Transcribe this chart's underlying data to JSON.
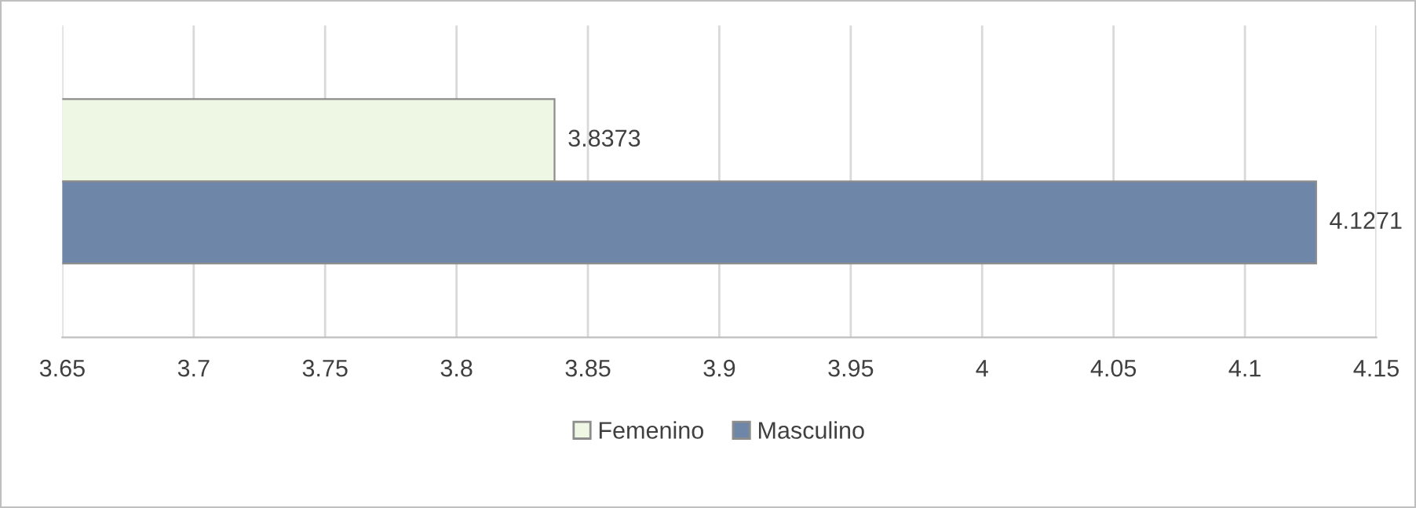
{
  "chart_data": {
    "type": "bar",
    "orientation": "horizontal",
    "categories": [
      null
    ],
    "series": [
      {
        "name": "Femenino",
        "color": "#eef7e4",
        "values": [
          3.8373
        ]
      },
      {
        "name": "Masculino",
        "color": "#6e87a8",
        "values": [
          4.1271
        ]
      }
    ],
    "xlim": [
      3.65,
      4.15
    ],
    "xticks": [
      3.65,
      3.7,
      3.75,
      3.8,
      3.85,
      3.9,
      3.95,
      4,
      4.05,
      4.1,
      4.15
    ],
    "grid": "x",
    "data_labels": true,
    "legend": "bottom"
  }
}
